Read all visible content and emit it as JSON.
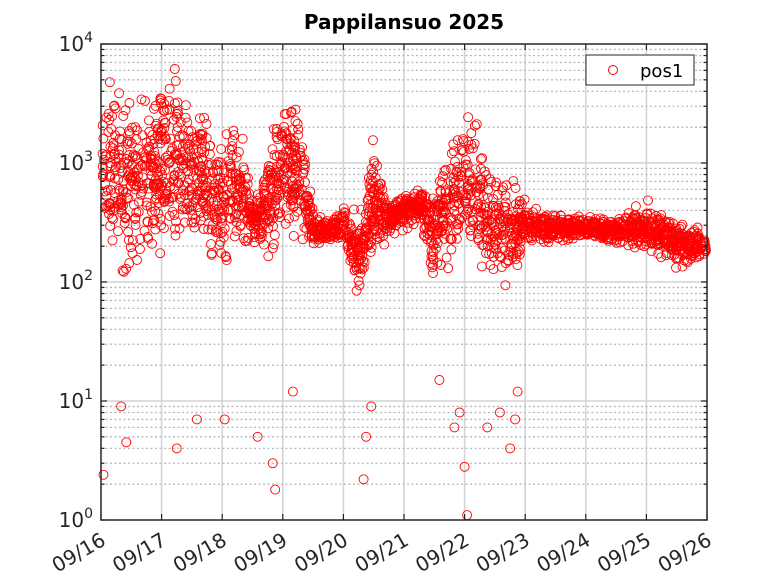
{
  "chart_data": {
    "type": "scatter",
    "title": "Pappilansuo 2025",
    "xlabel": "",
    "ylabel": "",
    "x_ticks": [
      "09/16",
      "09/17",
      "09/18",
      "09/19",
      "09/20",
      "09/21",
      "09/22",
      "09/23",
      "09/24",
      "09/25",
      "09/26"
    ],
    "xlim": [
      "2025-09-16",
      "2025-09-26"
    ],
    "y_scale": "log",
    "ylim": [
      1,
      10000
    ],
    "y_ticks": [
      {
        "base": "10",
        "exp": "0",
        "value": 1
      },
      {
        "base": "10",
        "exp": "1",
        "value": 10
      },
      {
        "base": "10",
        "exp": "2",
        "value": 100
      },
      {
        "base": "10",
        "exp": "3",
        "value": 1000
      },
      {
        "base": "10",
        "exp": "4",
        "value": 10000
      }
    ],
    "grid": true,
    "legend": {
      "position": "top-right",
      "entries": [
        "pos1"
      ]
    },
    "marker": "open-circle",
    "series": [
      {
        "name": "pos1",
        "color": "#ff0000",
        "note_envelope": [
          {
            "x": "2025-09-16 00:00",
            "y_low": 80,
            "y_high": 8000
          },
          {
            "x": "2025-09-16 06:00",
            "y_low": 100,
            "y_high": 9000
          },
          {
            "x": "2025-09-16 12:00",
            "y_low": 80,
            "y_high": 5000
          },
          {
            "x": "2025-09-16 18:00",
            "y_low": 80,
            "y_high": 5000
          },
          {
            "x": "2025-09-17 00:00",
            "y_low": 100,
            "y_high": 10000
          },
          {
            "x": "2025-09-17 06:00",
            "y_low": 150,
            "y_high": 9000
          },
          {
            "x": "2025-09-17 12:00",
            "y_low": 150,
            "y_high": 4000
          },
          {
            "x": "2025-09-17 18:00",
            "y_low": 120,
            "y_high": 3500
          },
          {
            "x": "2025-09-18 00:00",
            "y_low": 100,
            "y_high": 2500
          },
          {
            "x": "2025-09-18 06:00",
            "y_low": 120,
            "y_high": 4000
          },
          {
            "x": "2025-09-18 12:00",
            "y_low": 200,
            "y_high": 500
          },
          {
            "x": "2025-09-18 18:00",
            "y_low": 150,
            "y_high": 1500
          },
          {
            "x": "2025-09-19 00:00",
            "y_low": 150,
            "y_high": 6000
          },
          {
            "x": "2025-09-19 06:00",
            "y_low": 150,
            "y_high": 5000
          },
          {
            "x": "2025-09-19 12:00",
            "y_low": 180,
            "y_high": 400
          },
          {
            "x": "2025-09-19 18:00",
            "y_low": 200,
            "y_high": 350
          },
          {
            "x": "2025-09-20 00:00",
            "y_low": 200,
            "y_high": 500
          },
          {
            "x": "2025-09-20 06:00",
            "y_low": 60,
            "y_high": 400
          },
          {
            "x": "2025-09-20 12:00",
            "y_low": 100,
            "y_high": 2000
          },
          {
            "x": "2025-09-20 18:00",
            "y_low": 250,
            "y_high": 450
          },
          {
            "x": "2025-09-21 00:00",
            "y_low": 250,
            "y_high": 600
          },
          {
            "x": "2025-09-21 06:00",
            "y_low": 300,
            "y_high": 700
          },
          {
            "x": "2025-09-21 12:00",
            "y_low": 80,
            "y_high": 700
          },
          {
            "x": "2025-09-21 18:00",
            "y_low": 100,
            "y_high": 2500
          },
          {
            "x": "2025-09-22 00:00",
            "y_low": 100,
            "y_high": 4000
          },
          {
            "x": "2025-09-22 06:00",
            "y_low": 80,
            "y_high": 2500
          },
          {
            "x": "2025-09-22 12:00",
            "y_low": 60,
            "y_high": 1200
          },
          {
            "x": "2025-09-22 18:00",
            "y_low": 60,
            "y_high": 1000
          },
          {
            "x": "2025-09-23 00:00",
            "y_low": 180,
            "y_high": 500
          },
          {
            "x": "2025-09-23 12:00",
            "y_low": 200,
            "y_high": 400
          },
          {
            "x": "2025-09-24 00:00",
            "y_low": 220,
            "y_high": 380
          },
          {
            "x": "2025-09-24 12:00",
            "y_low": 200,
            "y_high": 350
          },
          {
            "x": "2025-09-25 00:00",
            "y_low": 150,
            "y_high": 600
          },
          {
            "x": "2025-09-25 12:00",
            "y_low": 120,
            "y_high": 350
          },
          {
            "x": "2025-09-26 00:00",
            "y_low": 150,
            "y_high": 300
          }
        ],
        "outliers": [
          {
            "x": "2025-09-16 01:00",
            "y": 2.4
          },
          {
            "x": "2025-09-16 10:00",
            "y": 4.5
          },
          {
            "x": "2025-09-16 08:00",
            "y": 9
          },
          {
            "x": "2025-09-17 06:00",
            "y": 4
          },
          {
            "x": "2025-09-17 14:00",
            "y": 7
          },
          {
            "x": "2025-09-18 01:00",
            "y": 7
          },
          {
            "x": "2025-09-18 14:00",
            "y": 5
          },
          {
            "x": "2025-09-18 20:00",
            "y": 3
          },
          {
            "x": "2025-09-18 21:00",
            "y": 1.8
          },
          {
            "x": "2025-09-19 04:00",
            "y": 12
          },
          {
            "x": "2025-09-20 08:00",
            "y": 2.2
          },
          {
            "x": "2025-09-20 09:00",
            "y": 5
          },
          {
            "x": "2025-09-20 11:00",
            "y": 9
          },
          {
            "x": "2025-09-21 14:00",
            "y": 15
          },
          {
            "x": "2025-09-21 20:00",
            "y": 6
          },
          {
            "x": "2025-09-21 22:00",
            "y": 8
          },
          {
            "x": "2025-09-22 00:00",
            "y": 2.8
          },
          {
            "x": "2025-09-22 01:00",
            "y": 1.1
          },
          {
            "x": "2025-09-22 09:00",
            "y": 6
          },
          {
            "x": "2025-09-22 14:00",
            "y": 8
          },
          {
            "x": "2025-09-22 18:00",
            "y": 4
          },
          {
            "x": "2025-09-22 20:00",
            "y": 7
          },
          {
            "x": "2025-09-22 21:00",
            "y": 12
          }
        ]
      }
    ]
  }
}
